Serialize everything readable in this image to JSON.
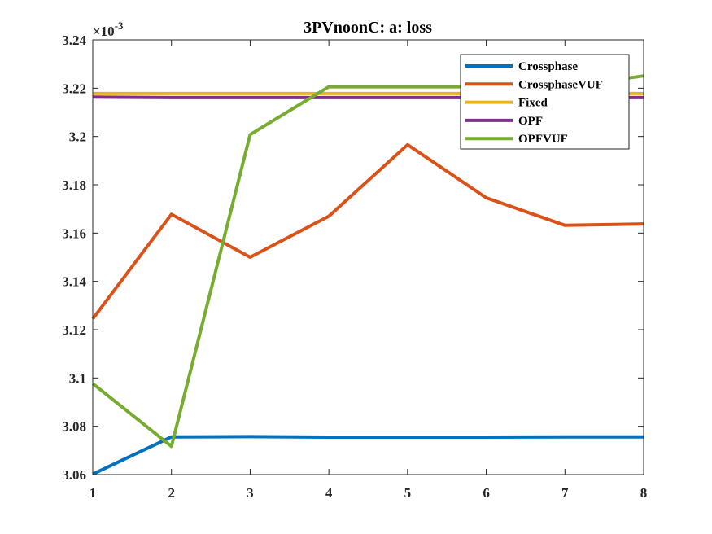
{
  "chart_data": {
    "type": "line",
    "title": "3PVnoonC: a: loss",
    "xlabel": "",
    "ylabel": "",
    "y_exponent_label": "×10",
    "y_exponent_power": "-3",
    "x": [
      1,
      2,
      3,
      4,
      5,
      6,
      7,
      8
    ],
    "xlim": [
      1,
      8
    ],
    "ylim": [
      3.06,
      3.24
    ],
    "x_ticks": [
      "1",
      "2",
      "3",
      "4",
      "5",
      "6",
      "7",
      "8"
    ],
    "y_ticks": [
      "3.06",
      "3.08",
      "3.1",
      "3.12",
      "3.14",
      "3.16",
      "3.18",
      "3.2",
      "3.22",
      "3.24"
    ],
    "grid": false,
    "legend_position": "top-right",
    "series": [
      {
        "name": "Crossphase",
        "color": "#0072BD",
        "values": [
          3.0602,
          3.0756,
          3.0757,
          3.0755,
          3.0755,
          3.0755,
          3.0756,
          3.0756
        ]
      },
      {
        "name": "CrossphaseVUF",
        "color": "#D95319",
        "values": [
          3.1245,
          3.1678,
          3.15,
          3.167,
          3.1966,
          3.1746,
          3.1632,
          3.1638
        ]
      },
      {
        "name": "Fixed",
        "color": "#EDB120",
        "values": [
          3.2178,
          3.2178,
          3.2178,
          3.2178,
          3.2178,
          3.2178,
          3.2178,
          3.2178
        ]
      },
      {
        "name": "OPF",
        "color": "#7E2F8E",
        "values": [
          3.2163,
          3.2161,
          3.2161,
          3.2161,
          3.2161,
          3.2161,
          3.2161,
          3.2161
        ]
      },
      {
        "name": "OPFVUF",
        "color": "#77AC30",
        "values": [
          3.0977,
          3.0717,
          3.2008,
          3.2206,
          3.2206,
          3.2206,
          3.2206,
          3.2251
        ]
      }
    ]
  }
}
